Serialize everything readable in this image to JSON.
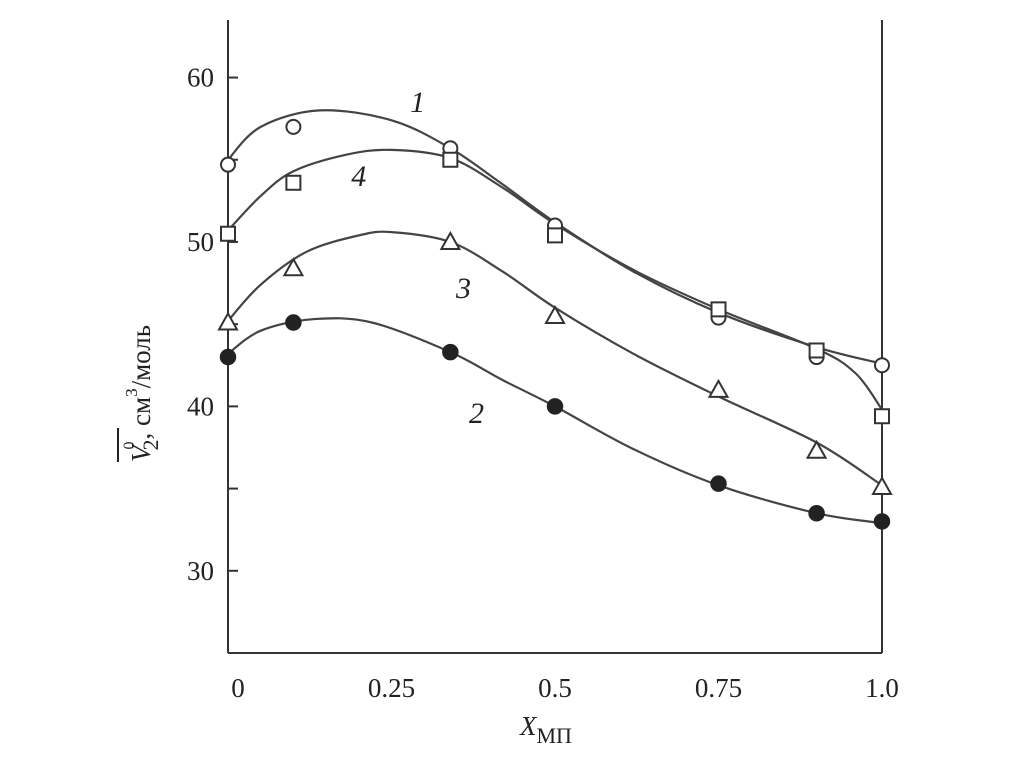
{
  "chart_data": {
    "type": "line",
    "x_axis": {
      "label_main": "X",
      "label_sub": "МП",
      "ticks": [
        0,
        0.25,
        0.5,
        0.75,
        1.0
      ],
      "tick_labels": [
        "0",
        "0.25",
        "0.5",
        "0.75",
        "1.0"
      ],
      "range": [
        0,
        1.0
      ]
    },
    "y_axis": {
      "label_symbol": "V",
      "label_sub": "2",
      "label_sup": "0",
      "label_rest": ", см",
      "label_unit_sup": "3",
      "label_unit_end": "/моль",
      "ticks": [
        30,
        40,
        50,
        60
      ],
      "tick_labels": [
        "30",
        "40",
        "50",
        "60"
      ],
      "minor_ticks": [
        25,
        35,
        45,
        55
      ],
      "range": [
        25,
        63.5
      ]
    },
    "series": [
      {
        "name": "1",
        "marker": "circle-open",
        "points": [
          [
            0,
            54.7
          ],
          [
            0.1,
            57.0
          ],
          [
            0.34,
            55.7
          ],
          [
            0.5,
            51.0
          ],
          [
            0.75,
            45.4
          ],
          [
            0.9,
            43.0
          ],
          [
            1.0,
            42.5
          ]
        ],
        "curve": [
          [
            0,
            55.0
          ],
          [
            0.05,
            57.0
          ],
          [
            0.14,
            58.0
          ],
          [
            0.25,
            57.4
          ],
          [
            0.34,
            55.7
          ],
          [
            0.42,
            53.5
          ],
          [
            0.5,
            51.2
          ],
          [
            0.62,
            48.2
          ],
          [
            0.75,
            45.7
          ],
          [
            0.9,
            43.6
          ],
          [
            1.0,
            42.6
          ]
        ],
        "label_at": [
          0.29,
          57.9
        ]
      },
      {
        "name": "4",
        "marker": "square-open",
        "points": [
          [
            0,
            50.5
          ],
          [
            0.1,
            53.6
          ],
          [
            0.34,
            55.0
          ],
          [
            0.5,
            50.4
          ],
          [
            0.75,
            45.9
          ],
          [
            0.9,
            43.4
          ],
          [
            1.0,
            39.4
          ]
        ],
        "curve": [
          [
            0,
            50.7
          ],
          [
            0.05,
            52.8
          ],
          [
            0.1,
            54.3
          ],
          [
            0.18,
            55.3
          ],
          [
            0.25,
            55.6
          ],
          [
            0.34,
            55.1
          ],
          [
            0.42,
            53.3
          ],
          [
            0.5,
            51.1
          ],
          [
            0.62,
            48.3
          ],
          [
            0.75,
            45.9
          ],
          [
            0.9,
            43.5
          ],
          [
            0.96,
            42.0
          ],
          [
            1.0,
            39.8
          ]
        ],
        "label_at": [
          0.2,
          53.4
        ]
      },
      {
        "name": "3",
        "marker": "triangle-open",
        "points": [
          [
            0,
            45.1
          ],
          [
            0.1,
            48.4
          ],
          [
            0.34,
            50.0
          ],
          [
            0.5,
            45.5
          ],
          [
            0.75,
            41.0
          ],
          [
            0.9,
            37.3
          ],
          [
            1.0,
            35.1
          ]
        ],
        "curve": [
          [
            0,
            45.2
          ],
          [
            0.05,
            47.4
          ],
          [
            0.12,
            49.4
          ],
          [
            0.2,
            50.4
          ],
          [
            0.25,
            50.6
          ],
          [
            0.34,
            50.0
          ],
          [
            0.42,
            48.2
          ],
          [
            0.5,
            46.0
          ],
          [
            0.62,
            43.2
          ],
          [
            0.75,
            40.6
          ],
          [
            0.9,
            37.8
          ],
          [
            1.0,
            35.2
          ]
        ],
        "label_at": [
          0.36,
          46.6
        ]
      },
      {
        "name": "2",
        "marker": "circle-filled",
        "points": [
          [
            0,
            43.0
          ],
          [
            0.1,
            45.1
          ],
          [
            0.34,
            43.3
          ],
          [
            0.5,
            40.0
          ],
          [
            0.75,
            35.3
          ],
          [
            0.9,
            33.5
          ],
          [
            1.0,
            33.0
          ]
        ],
        "curve": [
          [
            0,
            43.2
          ],
          [
            0.05,
            44.6
          ],
          [
            0.13,
            45.3
          ],
          [
            0.22,
            45.1
          ],
          [
            0.34,
            43.3
          ],
          [
            0.42,
            41.6
          ],
          [
            0.5,
            40.0
          ],
          [
            0.62,
            37.4
          ],
          [
            0.75,
            35.2
          ],
          [
            0.9,
            33.5
          ],
          [
            1.0,
            32.9
          ]
        ],
        "label_at": [
          0.38,
          39.0
        ]
      }
    ]
  }
}
